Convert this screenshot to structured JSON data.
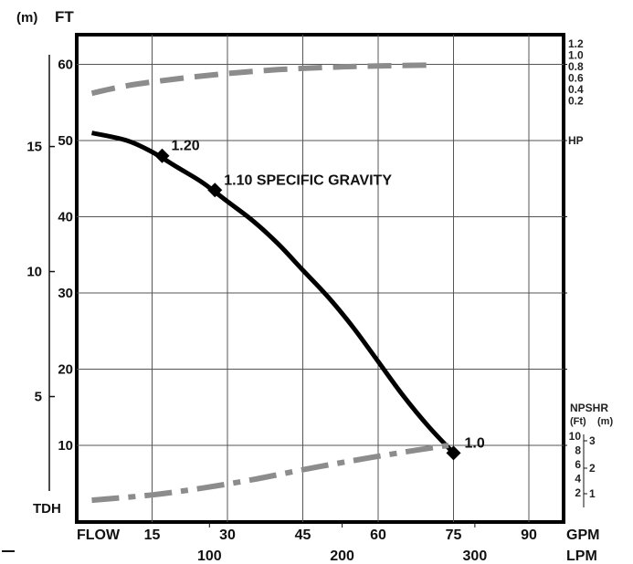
{
  "chart_data": {
    "type": "line",
    "title": "",
    "left_axis_headers": {
      "meters_label": "(m)",
      "feet_label": "FT"
    },
    "head_axis_ft": {
      "ticks": [
        10,
        20,
        30,
        40,
        50,
        60
      ],
      "ylim": [
        0,
        65
      ]
    },
    "head_axis_m": {
      "ticks": [
        5,
        10,
        15
      ]
    },
    "flow_axis_gpm": {
      "ticks": [
        15,
        30,
        45,
        60,
        75,
        90
      ],
      "xlim": [
        0,
        102
      ],
      "start_label": "FLOW",
      "unit_label": "GPM"
    },
    "flow_axis_lpm": {
      "ticks": [
        100,
        200,
        300
      ],
      "unit_label": "LPM"
    },
    "tdh_label": "TDH",
    "hp_axis": {
      "ticks": [
        "1.2",
        "1.0",
        "0.8",
        "0.6",
        "0.4",
        "0.2"
      ],
      "unit_label": "HP"
    },
    "npshr_axis": {
      "title": "NPSHR",
      "ft_label": "(Ft)",
      "m_label": "(m)",
      "ft_ticks": [
        "10",
        "8",
        "6",
        "4",
        "2"
      ],
      "m_ticks": [
        "3",
        "2",
        "1"
      ]
    },
    "series": [
      {
        "kind": "head_curve",
        "color": "#000000",
        "style": "solid",
        "x": [
          3,
          10,
          15,
          20,
          25,
          30,
          35,
          40,
          45,
          50,
          55,
          60,
          65,
          70,
          75
        ],
        "y": [
          51,
          50,
          48.5,
          46.5,
          44.5,
          42,
          39.5,
          36.5,
          33,
          29.5,
          25.5,
          21,
          16.5,
          12.5,
          9
        ]
      },
      {
        "kind": "hp_curve",
        "color": "#8c8c8c",
        "style": "dashed",
        "x": [
          3,
          10,
          20,
          30,
          40,
          50,
          60,
          71
        ],
        "y": [
          56.2,
          57.2,
          58.1,
          58.8,
          59.3,
          59.6,
          59.8,
          59.9
        ]
      },
      {
        "kind": "npshr_curve",
        "color": "#8c8c8c",
        "style": "dash-dot",
        "x": [
          3,
          15,
          25,
          35,
          45,
          55,
          65,
          74
        ],
        "y": [
          2.8,
          3.5,
          4.4,
          5.5,
          6.8,
          8.0,
          9.1,
          10
        ]
      }
    ],
    "annotations": [
      {
        "text": "1.20",
        "x": 17,
        "y": 48
      },
      {
        "text": "1.10  SPECIFIC GRAVITY",
        "x": 27.5,
        "y": 43.5
      },
      {
        "text": "1.0",
        "x": 75,
        "y": 9
      }
    ],
    "grid": true
  }
}
